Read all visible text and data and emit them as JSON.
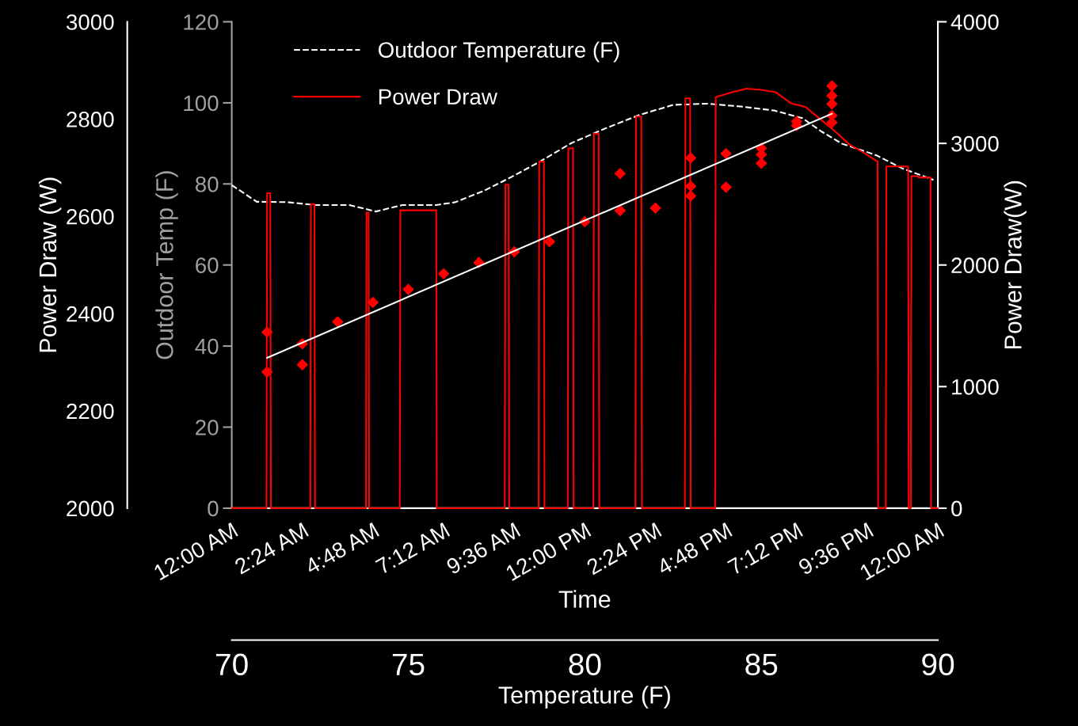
{
  "chart_data": [
    {
      "type": "line",
      "xlabel": "Time",
      "ylabel": "Outdoor Temp (F)",
      "y2label": "Power Draw(W)",
      "legend": "top left",
      "grid": false,
      "xlim": [
        0,
        24
      ],
      "xticks": [
        {
          "value": 0,
          "label": "12:00 AM"
        },
        {
          "value": 2.4,
          "label": "2:24 AM"
        },
        {
          "value": 4.8,
          "label": "4:48 AM"
        },
        {
          "value": 7.2,
          "label": "7:12 AM"
        },
        {
          "value": 9.6,
          "label": "9:36 AM"
        },
        {
          "value": 12,
          "label": "12:00 PM"
        },
        {
          "value": 14.4,
          "label": "2:24 PM"
        },
        {
          "value": 16.8,
          "label": "4:48 PM"
        },
        {
          "value": 19.2,
          "label": "7:12 PM"
        },
        {
          "value": 21.6,
          "label": "9:36 PM"
        },
        {
          "value": 24,
          "label": "12:00 AM"
        }
      ],
      "ylim": [
        0,
        120
      ],
      "yticks": [
        0,
        20,
        40,
        60,
        80,
        100,
        120
      ],
      "y2lim": [
        0,
        4000
      ],
      "y2ticks": [
        0,
        1000,
        2000,
        3000,
        4000
      ],
      "series": [
        {
          "name": "Outdoor Temperature (F)",
          "color": "#ffffff",
          "line_style": "dashed",
          "axis": "y",
          "x": [
            0,
            0.85,
            1.9,
            2.8,
            4.0,
            4.9,
            5.8,
            6.95,
            7.6,
            8.6,
            9.5,
            10.4,
            11.55,
            12.7,
            13.85,
            15,
            16.15,
            17.3,
            18.45,
            19.4,
            20.05,
            20.75,
            21.9,
            22.8,
            23.85
          ],
          "values": [
            79.7,
            75.6,
            75.5,
            74.8,
            74.8,
            73.2,
            74.8,
            74.8,
            75.5,
            78.4,
            81.7,
            85.2,
            90.1,
            93.7,
            97.0,
            99.5,
            99.8,
            99.1,
            98.1,
            96.2,
            92.9,
            89.9,
            87.1,
            83.8,
            81.0
          ]
        },
        {
          "name": "Power Draw",
          "color": "#ff0000",
          "line_style": "solid",
          "axis": "y2",
          "x": [
            0,
            1.18,
            1.2,
            1.31,
            1.33,
            2.67,
            2.69,
            2.81,
            2.83,
            4.56,
            4.58,
            4.65,
            4.67,
            5.71,
            5.73,
            6.95,
            6.97,
            9.28,
            9.3,
            9.41,
            9.43,
            10.43,
            10.45,
            10.61,
            10.63,
            11.42,
            11.44,
            11.6,
            11.62,
            12.29,
            12.31,
            12.47,
            12.49,
            13.72,
            13.74,
            13.92,
            13.94,
            15.4,
            15.42,
            15.58,
            15.6,
            16.43,
            16.45,
            17.0,
            17.5,
            18.0,
            18.5,
            19.0,
            19.5,
            20.0,
            20.5,
            21.0,
            21.5,
            21.95,
            21.97,
            22.23,
            22.25,
            22.99,
            23.01,
            23.08,
            23.1,
            23.33,
            23.35,
            23.75,
            23.77,
            24
          ],
          "values": [
            0,
            0,
            2590,
            2590,
            0,
            0,
            2500,
            2500,
            0,
            0,
            2430,
            2430,
            0,
            0,
            2450,
            2450,
            0,
            0,
            2660,
            2660,
            0,
            0,
            2850,
            2850,
            0,
            0,
            2960,
            2960,
            0,
            0,
            3080,
            3080,
            0,
            0,
            3220,
            3220,
            0,
            0,
            3370,
            3370,
            0,
            0,
            3380,
            3420,
            3450,
            3440,
            3420,
            3330,
            3300,
            3200,
            3100,
            2990,
            2920,
            2850,
            0,
            0,
            2810,
            2810,
            0,
            0,
            2730,
            2730,
            2720,
            2720,
            0,
            0
          ]
        }
      ]
    },
    {
      "type": "scatter",
      "xlabel": "Temperature (F)",
      "ylabel": "Power Draw (W)",
      "grid": false,
      "xlim": [
        70,
        90
      ],
      "xticks": [
        70,
        75,
        80,
        85,
        90
      ],
      "ylim": [
        2000,
        3000
      ],
      "yticks": [
        2000,
        2200,
        2400,
        2600,
        2800,
        3000
      ],
      "series": [
        {
          "type": "scatter",
          "color": "#ff0000",
          "marker": "diamond",
          "x": [
            71,
            71,
            72,
            72,
            73,
            74,
            75,
            76,
            77,
            78,
            79,
            80,
            81,
            81,
            82,
            83,
            83,
            83,
            84,
            84,
            85,
            85,
            85,
            86,
            86,
            87,
            87,
            87,
            87,
            87
          ],
          "values": [
            2362,
            2280,
            2338,
            2295,
            2383,
            2423,
            2450,
            2482,
            2505,
            2527,
            2548,
            2589,
            2688,
            2612,
            2617,
            2720,
            2662,
            2642,
            2729,
            2660,
            2740,
            2727,
            2709,
            2795,
            2787,
            2868,
            2848,
            2831,
            2807,
            2793
          ]
        },
        {
          "type": "line",
          "color": "#ffffff",
          "x": [
            71,
            87
          ],
          "values": [
            2309,
            2811
          ]
        }
      ]
    }
  ]
}
